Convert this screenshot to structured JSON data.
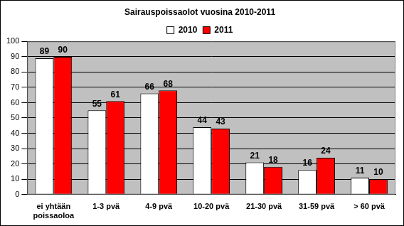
{
  "chart_data": {
    "type": "bar",
    "title": "Sairauspoissaolot vuosina 2010-2011",
    "categories": [
      "ei yhtään poissaoloa",
      "1-3 pvä",
      "4-9 pvä",
      "10-20 pvä",
      "21-30 pvä",
      "31-59 pvä",
      "> 60 pvä"
    ],
    "series": [
      {
        "name": "2010",
        "color": "#ffffff",
        "values": [
          89,
          55,
          66,
          44,
          21,
          16,
          11
        ]
      },
      {
        "name": "2011",
        "color": "#ff0000",
        "values": [
          90,
          61,
          68,
          43,
          18,
          24,
          10
        ]
      }
    ],
    "ylim": [
      0,
      100
    ],
    "yticks": [
      0,
      10,
      20,
      30,
      40,
      50,
      60,
      70,
      80,
      90,
      100
    ],
    "grid": true,
    "legend": "top",
    "data_labels": true
  }
}
